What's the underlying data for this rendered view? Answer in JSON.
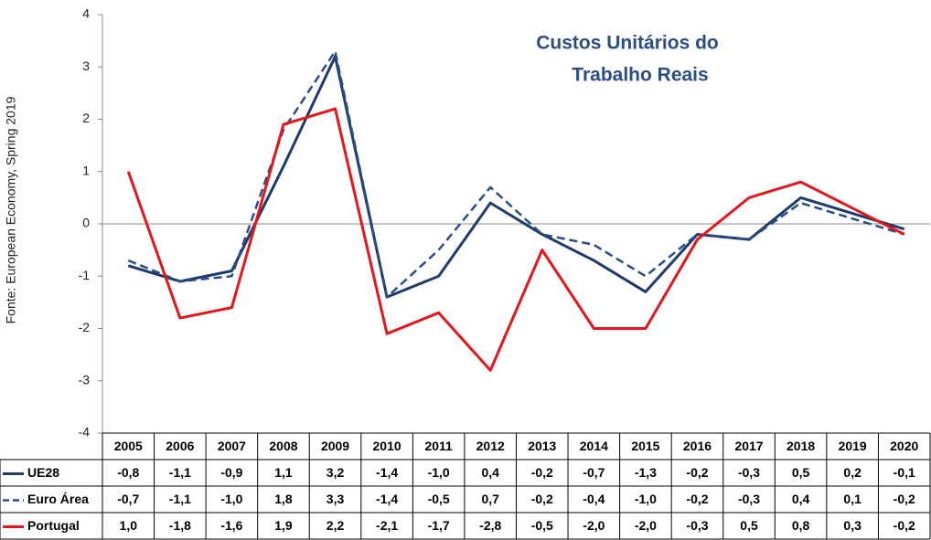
{
  "chart_data": {
    "type": "line",
    "title": [
      "Custos Unitários do",
      "Trabalho Reais"
    ],
    "y_label": "Fonte: European Economy, Spring 2019",
    "categories": [
      "2005",
      "2006",
      "2007",
      "2008",
      "2009",
      "2010",
      "2011",
      "2012",
      "2013",
      "2014",
      "2015",
      "2016",
      "2017",
      "2018",
      "2019",
      "2020"
    ],
    "series": [
      {
        "name": "UE28",
        "color": "#1f3b6b",
        "style": "solid",
        "values": [
          -0.8,
          -1.1,
          -0.9,
          1.1,
          3.2,
          -1.4,
          -1.0,
          0.4,
          -0.2,
          -0.7,
          -1.3,
          -0.2,
          -0.3,
          0.5,
          0.2,
          -0.1
        ],
        "value_labels": [
          "-0,8",
          "-1,1",
          "-0,9",
          "1,1",
          "3,2",
          "-1,4",
          "-1,0",
          "0,4",
          "-0,2",
          "-0,7",
          "-1,3",
          "-0,2",
          "-0,3",
          "0,5",
          "0,2",
          "-0,1"
        ]
      },
      {
        "name": "Euro Área",
        "color": "#2b4c86",
        "style": "dashed",
        "values": [
          -0.7,
          -1.1,
          -1.0,
          1.8,
          3.3,
          -1.4,
          -0.5,
          0.7,
          -0.2,
          -0.4,
          -1.0,
          -0.2,
          -0.3,
          0.4,
          0.1,
          -0.2
        ],
        "value_labels": [
          "-0,7",
          "-1,1",
          "-1,0",
          "1,8",
          "3,3",
          "-1,4",
          "-0,5",
          "0,7",
          "-0,2",
          "-0,4",
          "-1,0",
          "-0,2",
          "-0,3",
          "0,4",
          "0,1",
          "-0,2"
        ]
      },
      {
        "name": "Portugal",
        "color": "#e8141b",
        "style": "solid",
        "values": [
          1.0,
          -1.8,
          -1.6,
          1.9,
          2.2,
          -2.1,
          -1.7,
          -2.8,
          -0.5,
          -2.0,
          -2.0,
          -0.3,
          0.5,
          0.8,
          0.3,
          -0.2
        ],
        "value_labels": [
          "1,0",
          "-1,8",
          "-1,6",
          "1,9",
          "2,2",
          "-2,1",
          "-1,7",
          "-2,8",
          "-0,5",
          "-2,0",
          "-2,0",
          "-0,3",
          "0,5",
          "0,8",
          "0,3",
          "-0,2"
        ]
      }
    ],
    "ylim": [
      -4,
      4
    ],
    "yticks": [
      4,
      3,
      2,
      1,
      0,
      -1,
      -2,
      -3,
      -4
    ]
  }
}
